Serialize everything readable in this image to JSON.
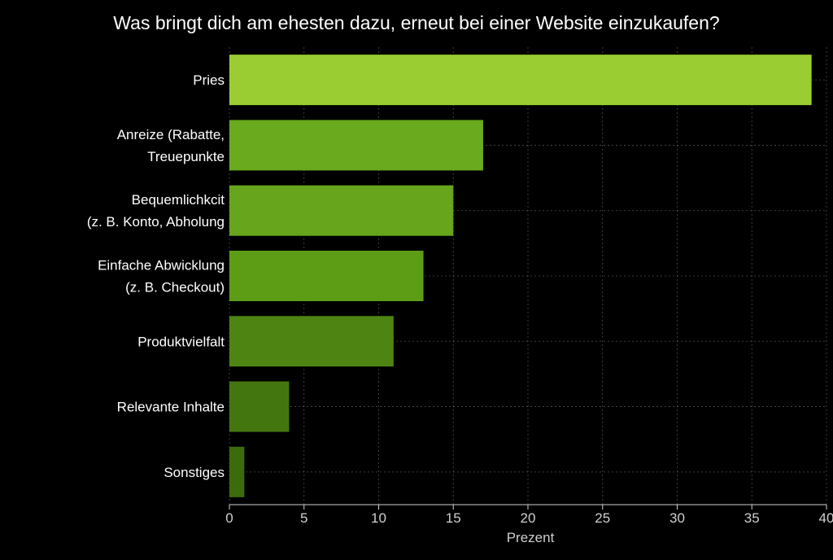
{
  "chart_data": {
    "type": "bar",
    "orientation": "horizontal",
    "title": "Was bringt dich am ehesten dazu, erneut bei einer Website einzukaufen?",
    "xlabel": "Prezent",
    "ylabel": "",
    "xlim": [
      0,
      40
    ],
    "xticks": [
      "0",
      "5",
      "10",
      "15",
      "20",
      "25",
      "30",
      "35",
      "40"
    ],
    "grid": true,
    "categories": [
      [
        "Pries"
      ],
      [
        "Anreize (Rabatte,",
        "Treuepunkte"
      ],
      [
        "Bequemlichkcit",
        "(z. B. Konto, Abholung"
      ],
      [
        "Einfache Abwicklung",
        "(z. B. Checkout)"
      ],
      [
        "Produktvielfalt"
      ],
      [
        "Relevante Inhalte"
      ],
      [
        "Sonstiges"
      ]
    ],
    "values": [
      39,
      17,
      15,
      13,
      11,
      4,
      1
    ],
    "colors": [
      "#9acd32",
      "#6aaa1e",
      "#66a51c",
      "#5d9d16",
      "#4e8512",
      "#44760f",
      "#3c6b0c"
    ]
  },
  "colors": {
    "background": "#000000",
    "title_text": "#ffffff",
    "label_text": "#ffffff",
    "tick_text": "#cfcfcf"
  }
}
